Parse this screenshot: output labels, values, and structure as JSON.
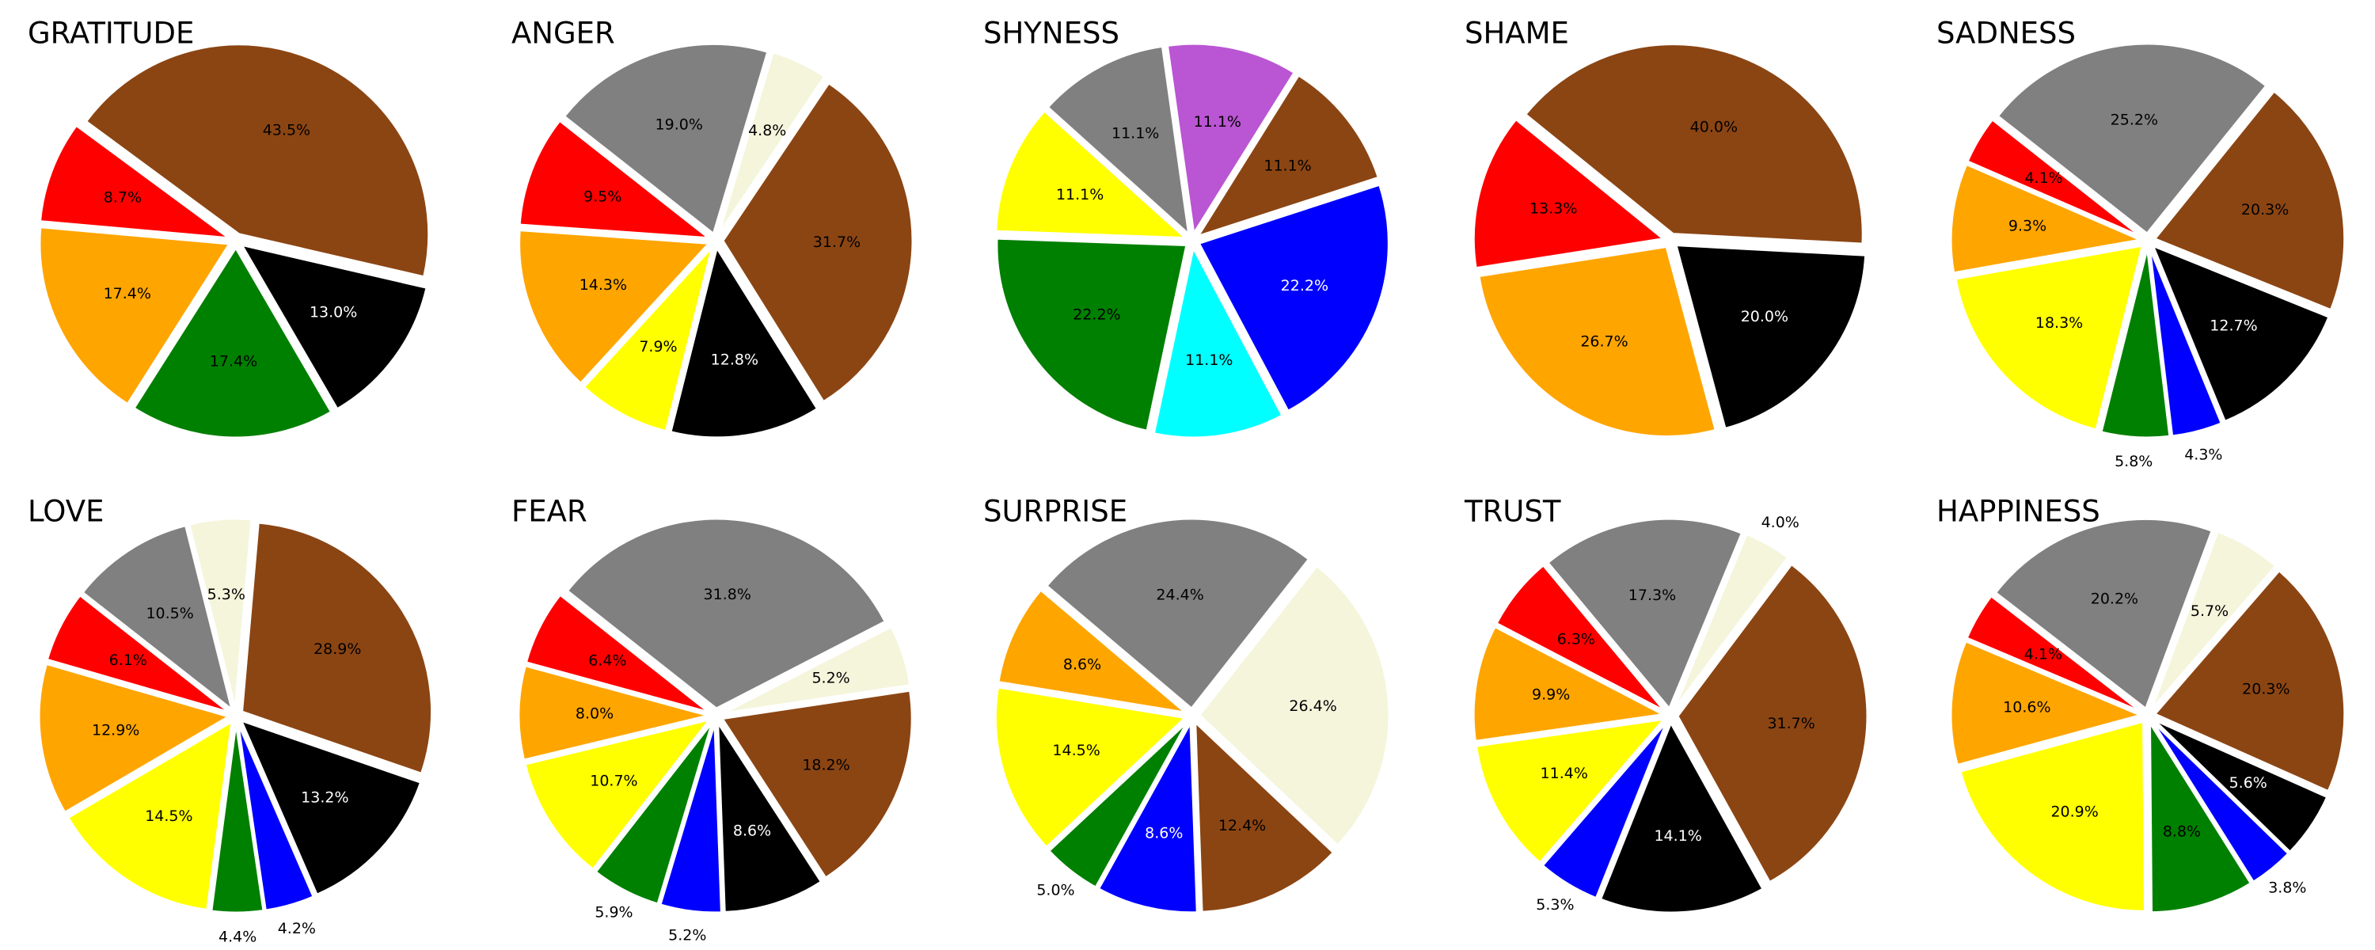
{
  "chart_data": [
    {
      "type": "pie",
      "title": "GRATITUDE",
      "startangle": -13,
      "values": [
        43.5,
        8.7,
        17.4,
        17.4,
        13.0
      ],
      "value_labels": [
        "43.5%",
        "8.7%",
        "17.4%",
        "17.4%",
        "13.0%"
      ],
      "colors": [
        "#8B4513",
        "#FF0000",
        "#FFA500",
        "#008000",
        "#000000"
      ]
    },
    {
      "type": "pie",
      "title": "ANGER",
      "startangle": -58,
      "values": [
        31.7,
        4.8,
        19.0,
        9.5,
        14.3,
        7.9,
        12.8
      ],
      "value_labels": [
        "31.7%",
        "4.8%",
        "19.0%",
        "9.5%",
        "14.3%",
        "7.9%",
        "12.8%"
      ],
      "colors": [
        "#8B4513",
        "#F5F5DC",
        "#808080",
        "#FF0000",
        "#FFA500",
        "#FFFF00",
        "#000000"
      ]
    },
    {
      "type": "pie",
      "title": "SHYNESS",
      "startangle": 18,
      "values": [
        11.1,
        11.1,
        11.1,
        11.1,
        22.2,
        11.1,
        22.2
      ],
      "value_labels": [
        "11.1%",
        "11.1%",
        "11.1%",
        "11.1%",
        "22.2%",
        "11.1%",
        "22.2%"
      ],
      "colors": [
        "#8B4513",
        "#BA55D3",
        "#808080",
        "#FFFF00",
        "#008000",
        "#00FFFF",
        "#0000FF"
      ]
    },
    {
      "type": "pie",
      "title": "SHAME",
      "startangle": -3,
      "values": [
        40.0,
        13.3,
        26.7,
        20.0
      ],
      "value_labels": [
        "40.0%",
        "13.3%",
        "26.7%",
        "20.0%"
      ],
      "colors": [
        "#8B4513",
        "#FF0000",
        "#FFA500",
        "#000000"
      ]
    },
    {
      "type": "pie",
      "title": "SADNESS",
      "startangle": -22,
      "values": [
        20.3,
        25.2,
        4.1,
        9.3,
        18.3,
        5.8,
        4.3,
        12.7
      ],
      "value_labels": [
        "20.3%",
        "25.2%",
        "4.1%",
        "9.3%",
        "18.3%",
        "5.8%",
        "4.3%",
        "12.7%"
      ],
      "colors": [
        "#8B4513",
        "#808080",
        "#FF0000",
        "#FFA500",
        "#FFFF00",
        "#008000",
        "#0000FF",
        "#000000"
      ]
    },
    {
      "type": "pie",
      "title": "LOVE",
      "startangle": -19,
      "values": [
        28.9,
        5.3,
        10.5,
        6.1,
        12.9,
        14.5,
        4.4,
        4.2,
        13.2
      ],
      "value_labels": [
        "28.9%",
        "5.3%",
        "10.5%",
        "6.1%",
        "12.9%",
        "14.5%",
        "4.4%",
        "4.2%",
        "13.2%"
      ],
      "colors": [
        "#8B4513",
        "#F5F5DC",
        "#808080",
        "#FF0000",
        "#FFA500",
        "#FFFF00",
        "#008000",
        "#0000FF",
        "#000000"
      ]
    },
    {
      "type": "pie",
      "title": "FEAR",
      "startangle": -57,
      "values": [
        18.2,
        5.2,
        31.8,
        6.4,
        8.0,
        10.7,
        5.9,
        5.2,
        8.6
      ],
      "value_labels": [
        "18.2%",
        "5.2%",
        "31.8%",
        "6.4%",
        "8.0%",
        "10.7%",
        "5.9%",
        "5.2%",
        "8.6%"
      ],
      "colors": [
        "#8B4513",
        "#F5F5DC",
        "#808080",
        "#FF0000",
        "#FFA500",
        "#FFFF00",
        "#008000",
        "#0000FF",
        "#000000"
      ]
    },
    {
      "type": "pie",
      "title": "SURPRISE",
      "startangle": -88,
      "values": [
        12.4,
        26.4,
        24.4,
        8.6,
        14.5,
        5.0,
        8.6
      ],
      "value_labels": [
        "12.4%",
        "26.4%",
        "24.4%",
        "8.6%",
        "14.5%",
        "5.0%",
        "8.6%"
      ],
      "colors": [
        "#8B4513",
        "#F5F5DC",
        "#808080",
        "#FFA500",
        "#FFFF00",
        "#008000",
        "#0000FF"
      ]
    },
    {
      "type": "pie",
      "title": "TRUST",
      "startangle": -61,
      "values": [
        31.7,
        4.0,
        17.3,
        6.3,
        9.9,
        11.4,
        5.3,
        14.1
      ],
      "value_labels": [
        "31.7%",
        "4.0%",
        "17.3%",
        "6.3%",
        "9.9%",
        "11.4%",
        "5.3%",
        "14.1%"
      ],
      "colors": [
        "#8B4513",
        "#F5F5DC",
        "#808080",
        "#FF0000",
        "#FFA500",
        "#FFFF00",
        "#0000FF",
        "#000000"
      ]
    },
    {
      "type": "pie",
      "title": "HAPPINESS",
      "startangle": -24,
      "values": [
        20.3,
        5.7,
        20.2,
        4.1,
        10.6,
        20.9,
        8.8,
        3.8,
        5.6
      ],
      "value_labels": [
        "20.3%",
        "5.7%",
        "20.2%",
        "4.1%",
        "10.6%",
        "20.9%",
        "8.8%",
        "3.8%",
        "5.6%"
      ],
      "colors": [
        "#8B4513",
        "#F5F5DC",
        "#808080",
        "#FF0000",
        "#FFA500",
        "#FFFF00",
        "#008000",
        "#0000FF",
        "#000000"
      ]
    }
  ]
}
